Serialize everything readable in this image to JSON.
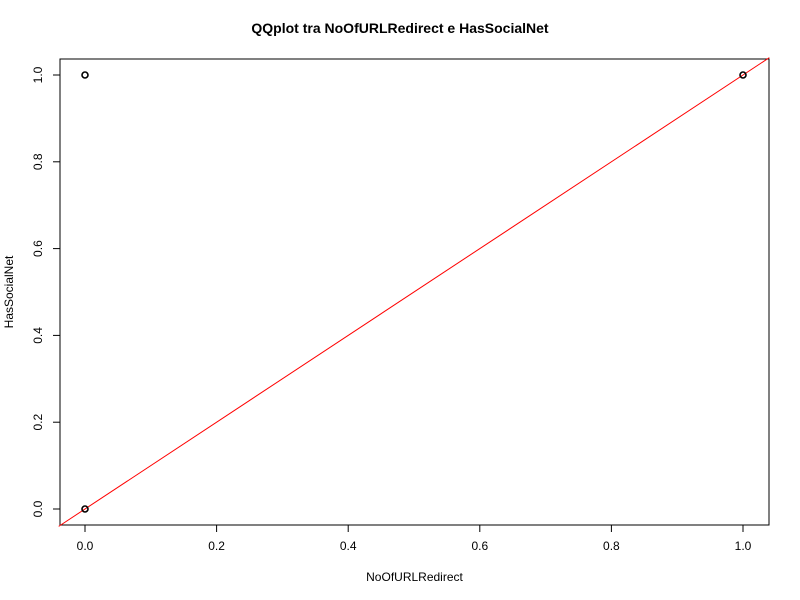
{
  "chart_data": {
    "type": "scatter",
    "title": "QQplot tra NoOfURLRedirect e HasSocialNet",
    "xlabel": "NoOfURLRedirect",
    "ylabel": "HasSocialNet",
    "xlim": [
      -0.04,
      1.04
    ],
    "ylim": [
      -0.04,
      1.04
    ],
    "x_ticks": [
      0.0,
      0.2,
      0.4,
      0.6,
      0.8,
      1.0
    ],
    "x_tick_labels": [
      "0.0",
      "0.2",
      "0.4",
      "0.6",
      "0.8",
      "1.0"
    ],
    "y_ticks": [
      0.0,
      0.2,
      0.4,
      0.6,
      0.8,
      1.0
    ],
    "y_tick_labels": [
      "0.0",
      "0.2",
      "0.4",
      "0.6",
      "0.8",
      "1.0"
    ],
    "points": [
      {
        "x": 0,
        "y": 0
      },
      {
        "x": 0,
        "y": 1
      },
      {
        "x": 1,
        "y": 1
      }
    ],
    "reference_line": {
      "intercept": 0,
      "slope": 1,
      "color": "#ff0000"
    },
    "grid": false,
    "point_color": "#000000"
  }
}
